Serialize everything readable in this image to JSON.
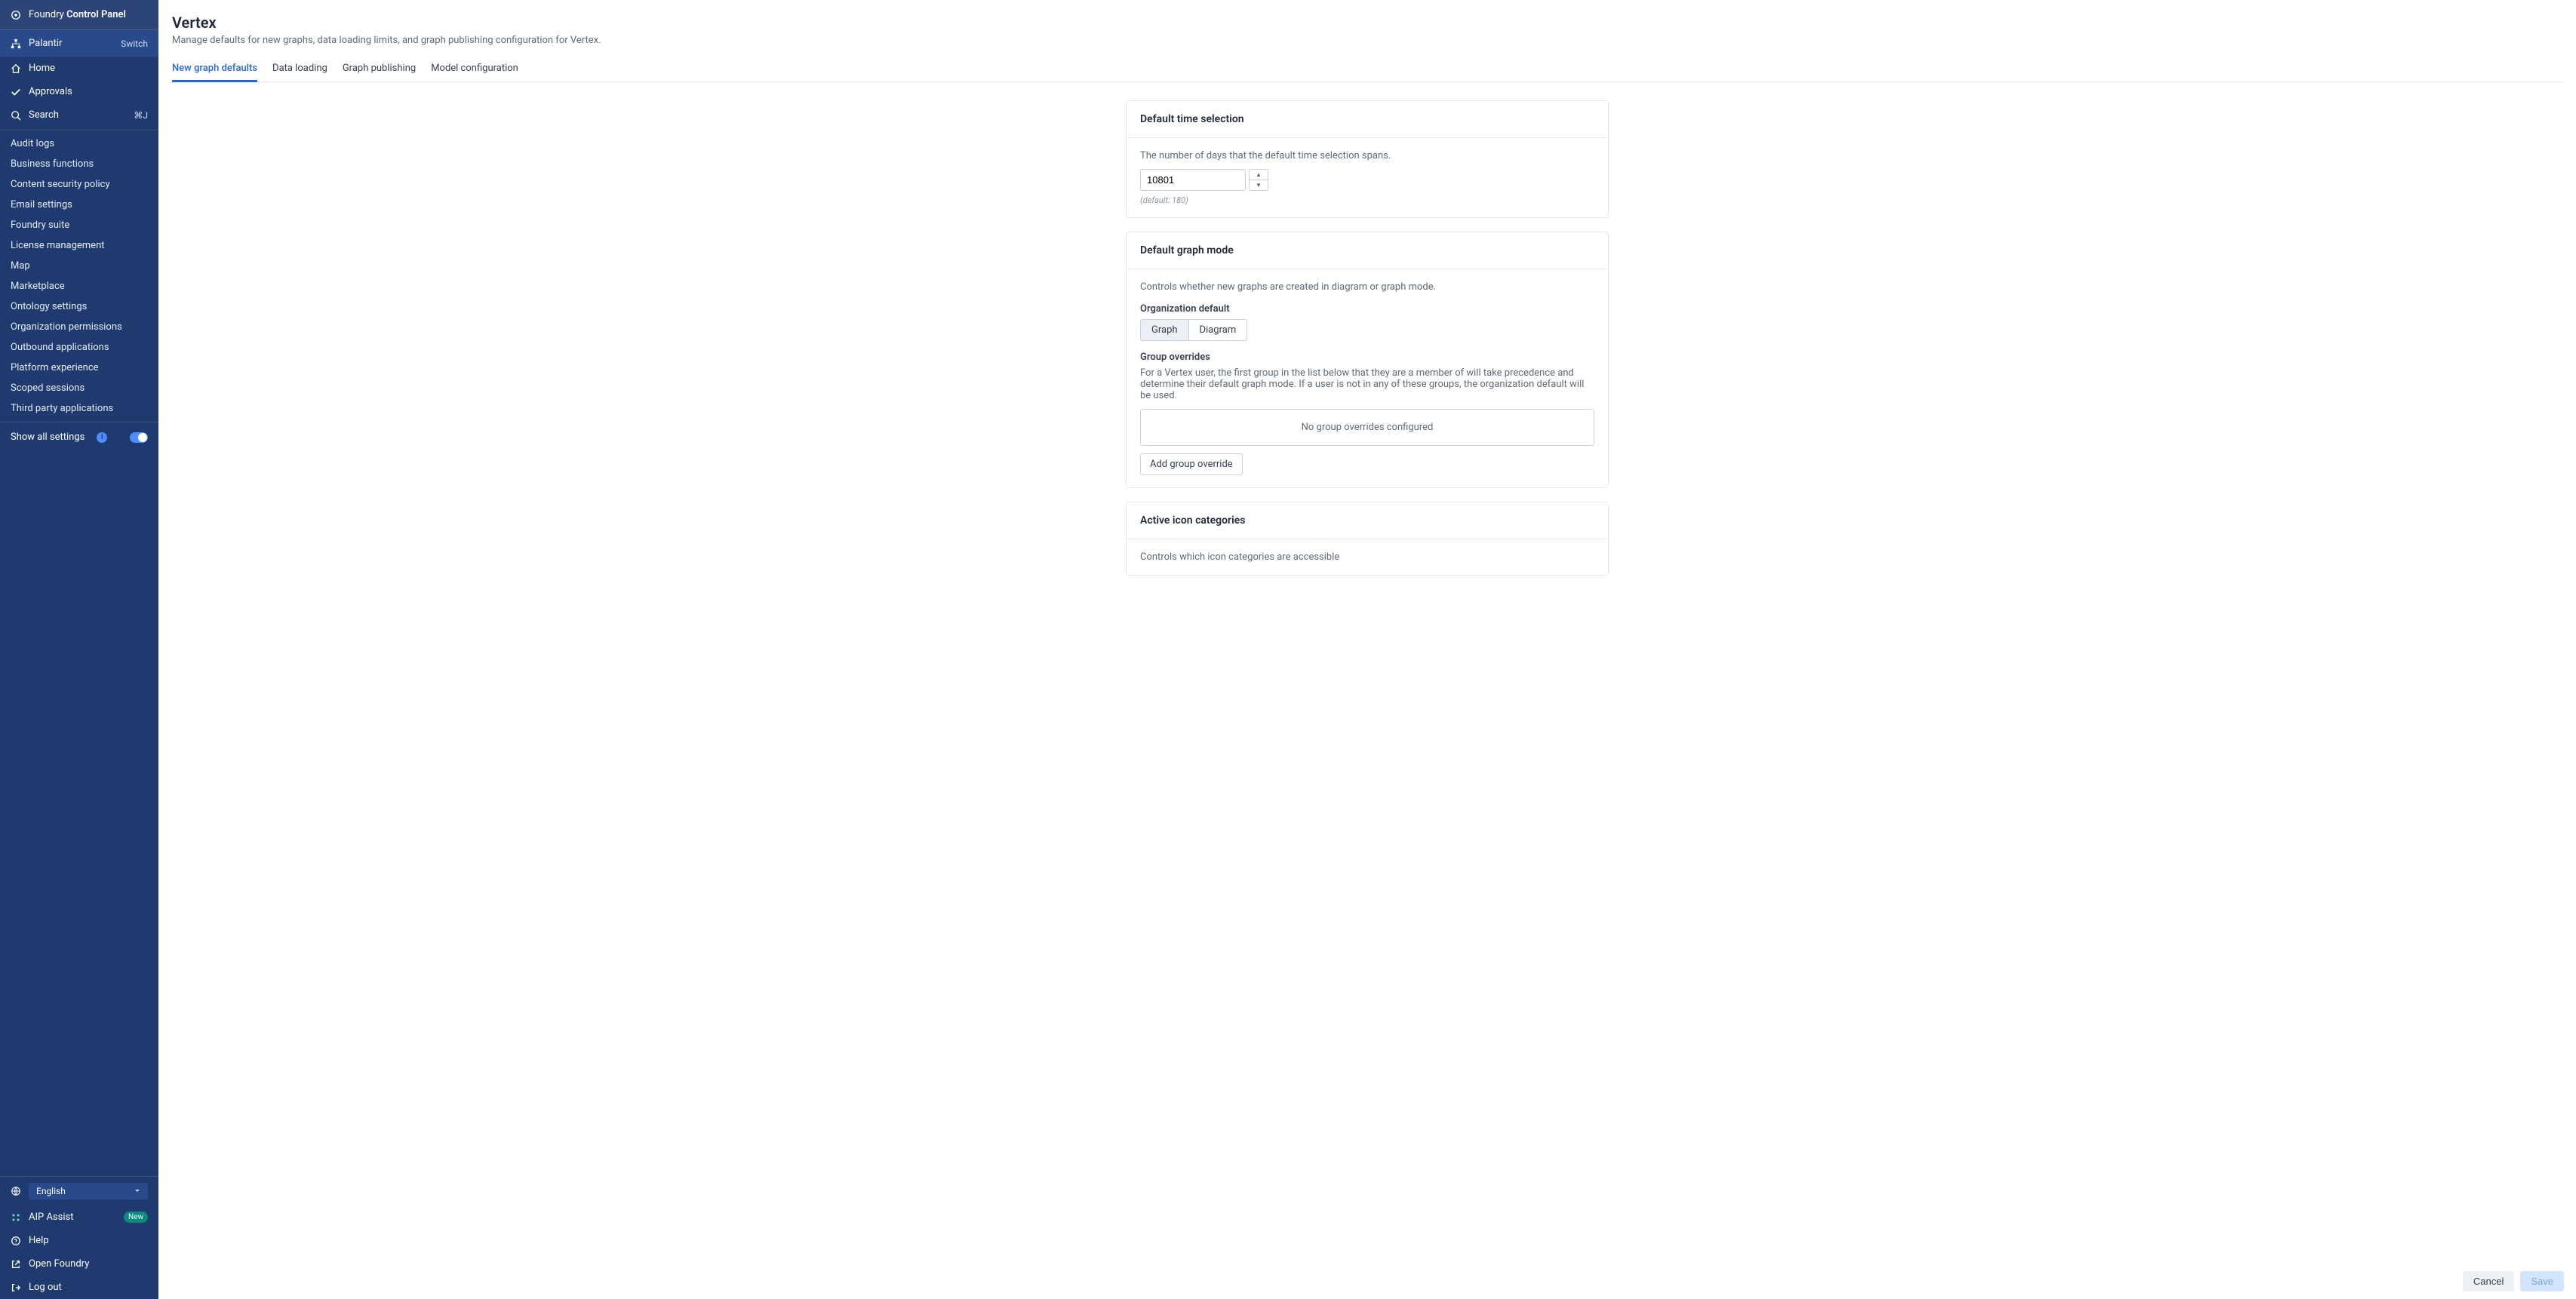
{
  "app": {
    "brand_prefix": "Foundry",
    "brand_suffix": "Control Panel"
  },
  "org": {
    "name": "Palantir",
    "switch_label": "Switch"
  },
  "nav_primary": [
    {
      "icon": "home",
      "label": "Home"
    },
    {
      "icon": "check",
      "label": "Approvals"
    },
    {
      "icon": "search",
      "label": "Search",
      "kbd": "⌘J"
    }
  ],
  "nav_secondary": [
    "Audit logs",
    "Business functions",
    "Content security policy",
    "Email settings",
    "Foundry suite",
    "License management",
    "Map",
    "Marketplace",
    "Ontology settings",
    "Organization permissions",
    "Outbound applications",
    "Platform experience",
    "Scoped sessions",
    "Third party applications"
  ],
  "show_all": {
    "label": "Show all settings"
  },
  "nav_bottom": {
    "language": "English",
    "aip_label": "AIP Assist",
    "aip_badge": "New",
    "help": "Help",
    "open_foundry": "Open Foundry",
    "logout": "Log out"
  },
  "page": {
    "title": "Vertex",
    "desc": "Manage defaults for new graphs, data loading limits, and graph publishing configuration for Vertex."
  },
  "tabs": [
    {
      "label": "New graph defaults",
      "active": true
    },
    {
      "label": "Data loading"
    },
    {
      "label": "Graph publishing"
    },
    {
      "label": "Model configuration"
    }
  ],
  "card_time": {
    "title": "Default time selection",
    "desc": "The number of days that the default time selection spans.",
    "value": "10801",
    "default_note": "(default: 180)"
  },
  "card_mode": {
    "title": "Default graph mode",
    "desc": "Controls whether new graphs are created in diagram or graph mode.",
    "org_default_label": "Organization default",
    "opt_graph": "Graph",
    "opt_diagram": "Diagram",
    "overrides_label": "Group overrides",
    "overrides_desc": "For a Vertex user, the first group in the list below that they are a member of will take precedence and determine their default graph mode. If a user is not in any of these groups, the organization default will be used.",
    "overrides_empty": "No group overrides configured",
    "add_override_btn": "Add group override"
  },
  "card_icons": {
    "title": "Active icon categories",
    "desc": "Controls which icon categories are accessible"
  },
  "footer": {
    "cancel": "Cancel",
    "save": "Save"
  }
}
